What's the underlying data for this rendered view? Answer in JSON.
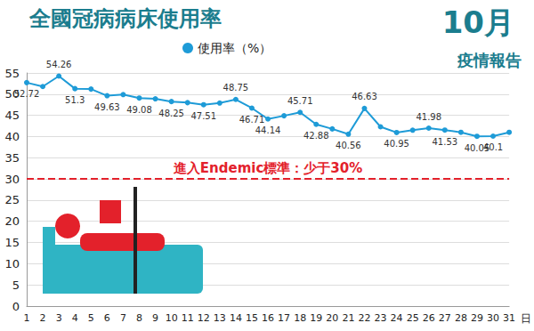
{
  "chart_data": {
    "type": "line",
    "title": "全國冠病病床使用率",
    "xlabel": "日",
    "categories": [
      "1",
      "2",
      "3",
      "4",
      "5",
      "6",
      "7",
      "8",
      "9",
      "10",
      "11",
      "12",
      "13",
      "14",
      "15",
      "16",
      "17",
      "18",
      "19",
      "20",
      "21",
      "22",
      "23",
      "24",
      "25",
      "26",
      "27",
      "28",
      "29",
      "30",
      "31"
    ],
    "series": [
      {
        "name": "使用率（%）",
        "color": "#1e9bd7",
        "marker": "circle",
        "values": [
          52.72,
          51.8,
          54.26,
          51.3,
          51.2,
          49.63,
          49.9,
          49.08,
          48.9,
          48.25,
          48.0,
          47.51,
          47.9,
          48.75,
          46.71,
          44.14,
          44.9,
          45.71,
          42.88,
          41.8,
          40.56,
          46.63,
          42.3,
          40.95,
          41.5,
          41.98,
          41.53,
          41.0,
          40.05,
          40.1,
          41.0
        ],
        "value_labels": [
          "52.72",
          null,
          "54.26",
          "51.3",
          null,
          "49.63",
          null,
          "49.08",
          null,
          "48.25",
          null,
          "47.51",
          null,
          "48.75",
          "46.71",
          "44.14",
          null,
          "45.71",
          "42.88",
          null,
          "40.56",
          "46.63",
          null,
          "40.95",
          null,
          "41.98",
          "41.53",
          null,
          "40.05",
          "40.1",
          null
        ]
      }
    ],
    "data_labels": true,
    "ylim": [
      0,
      55
    ],
    "yticks": [
      0,
      5,
      10,
      15,
      20,
      25,
      30,
      35,
      40,
      45,
      50,
      55
    ],
    "grid": true,
    "legend": "top",
    "annotations": [
      {
        "text": "進入Endemic標準：少于30%",
        "y": 30,
        "color": "#e3212b",
        "line_style": "dashed"
      },
      {
        "text": "10月"
      },
      {
        "text": "疫情報告"
      }
    ]
  }
}
